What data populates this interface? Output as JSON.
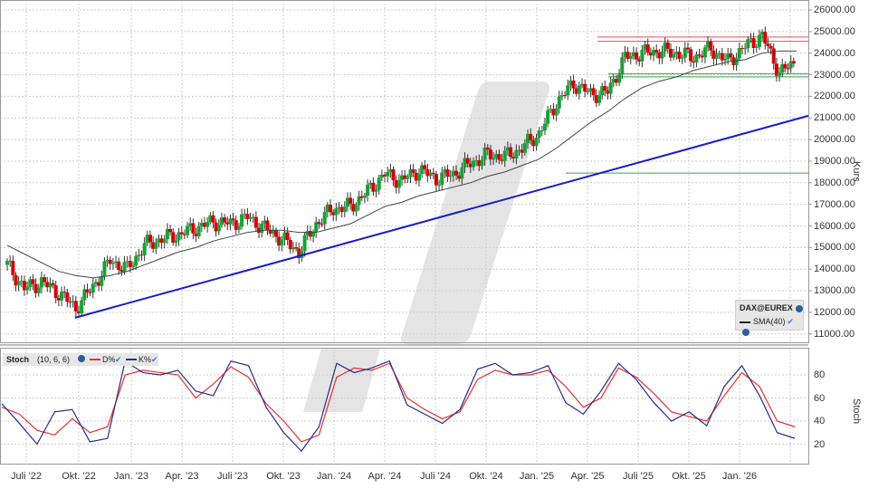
{
  "instrument": "DAX@EUREX",
  "main_panel": {
    "axis_title": "Kurs",
    "y_ticks": [
      "26000.00",
      "25000.00",
      "24000.00",
      "23000.00",
      "22000.00",
      "21000.00",
      "20000.00",
      "19000.00",
      "18000.00",
      "17000.00",
      "16000.00",
      "15000.00",
      "14000.00",
      "13000.00",
      "12000.00",
      "11000.00"
    ],
    "legend": {
      "title": "DAX@EUREX",
      "sma_label": "SMA(40)"
    }
  },
  "stoch_panel": {
    "label": "Stoch",
    "params": "(10, 6, 6)",
    "d_label": "D%",
    "k_label": "K%",
    "axis_title": "Stoch",
    "y_ticks": [
      "80",
      "60",
      "40",
      "20"
    ]
  },
  "x_ticks": [
    "Juli '22",
    "Okt. '22",
    "Jan. '23",
    "Apr. '23",
    "Juli '23",
    "Okt. '23",
    "Jan. '24",
    "Apr. '24",
    "Juli '24",
    "Okt. '24",
    "Jan. '25",
    "Apr. '25",
    "Juli '25",
    "Okt. '25",
    "Jan. '26"
  ],
  "colors": {
    "up": "#1aa035",
    "down": "#d40000",
    "sma": "#333333",
    "trend": "#1a1acc",
    "resistance": "#e05050",
    "support": "#3aa04a",
    "d_line": "#e83030",
    "k_line": "#2a2a8a"
  },
  "chart_data": [
    {
      "type": "candlestick",
      "title": "DAX@EUREX",
      "ylabel": "Kurs",
      "ylim": [
        10500,
        26500
      ],
      "x": [
        "2022-05",
        "2022-06",
        "2022-07",
        "2022-08",
        "2022-09",
        "2022-10",
        "2022-11",
        "2022-12",
        "2023-01",
        "2023-02",
        "2023-03",
        "2023-04",
        "2023-05",
        "2023-06",
        "2023-07",
        "2023-08",
        "2023-09",
        "2023-10",
        "2023-11",
        "2023-12",
        "2024-01",
        "2024-02",
        "2024-03",
        "2024-04",
        "2024-05",
        "2024-06",
        "2024-07",
        "2024-08",
        "2024-09",
        "2024-10",
        "2024-11",
        "2024-12",
        "2025-01",
        "2025-02",
        "2025-03",
        "2025-04",
        "2025-05",
        "2025-06",
        "2025-07",
        "2025-08",
        "2025-09",
        "2025-10",
        "2025-11",
        "2025-12",
        "2026-01",
        "2026-02",
        "2026-03"
      ],
      "close": [
        14200,
        13100,
        13400,
        12900,
        12200,
        13200,
        14400,
        14000,
        15100,
        15400,
        15600,
        15900,
        16200,
        16100,
        16400,
        15900,
        15400,
        14800,
        16100,
        16800,
        16900,
        17600,
        18400,
        18100,
        18600,
        18200,
        18400,
        18900,
        19300,
        19200,
        19600,
        20300,
        21700,
        22600,
        22100,
        22200,
        23800,
        24000,
        24100,
        24000,
        23800,
        24200,
        23600,
        24300,
        24800,
        23100,
        23600
      ],
      "sma40": [
        15100,
        14700,
        14300,
        13900,
        13700,
        13600,
        13700,
        13900,
        14200,
        14500,
        14800,
        15000,
        15300,
        15500,
        15700,
        15800,
        15800,
        15700,
        15700,
        15900,
        16100,
        16500,
        16900,
        17100,
        17400,
        17600,
        17800,
        18000,
        18300,
        18500,
        18800,
        19100,
        19600,
        20200,
        20800,
        21300,
        21900,
        22400,
        22700,
        22900,
        23200,
        23400,
        23600,
        23700,
        24000,
        24100,
        24100
      ],
      "trendline": {
        "start": {
          "x": "2022-10",
          "y": 11750
        },
        "end": {
          "x": "2026-03",
          "y": 21100
        }
      },
      "horizontal_lines": [
        {
          "type": "resistance",
          "y": 24750
        },
        {
          "type": "resistance",
          "y": 24550
        },
        {
          "type": "support",
          "y": 23050
        },
        {
          "type": "support",
          "y": 22900
        },
        {
          "type": "support",
          "y": 18450
        }
      ]
    },
    {
      "type": "line",
      "title": "Stoch (10, 6, 6)",
      "ylabel": "Stoch",
      "ylim": [
        5,
        100
      ],
      "series": [
        {
          "name": "D%",
          "values": [
            52,
            46,
            32,
            28,
            42,
            30,
            35,
            80,
            84,
            82,
            80,
            60,
            72,
            87,
            78,
            55,
            40,
            22,
            28,
            78,
            86,
            84,
            90,
            60,
            50,
            42,
            48,
            76,
            84,
            80,
            80,
            84,
            70,
            52,
            60,
            86,
            78,
            64,
            48,
            44,
            40,
            62,
            82,
            70,
            40,
            35
          ]
        },
        {
          "name": "K%",
          "values": [
            55,
            38,
            20,
            48,
            50,
            22,
            25,
            92,
            82,
            80,
            84,
            66,
            62,
            92,
            88,
            52,
            30,
            14,
            35,
            90,
            82,
            86,
            92,
            54,
            46,
            38,
            50,
            85,
            90,
            80,
            82,
            88,
            56,
            46,
            66,
            90,
            76,
            56,
            40,
            48,
            36,
            70,
            88,
            62,
            30,
            25
          ]
        }
      ]
    }
  ]
}
